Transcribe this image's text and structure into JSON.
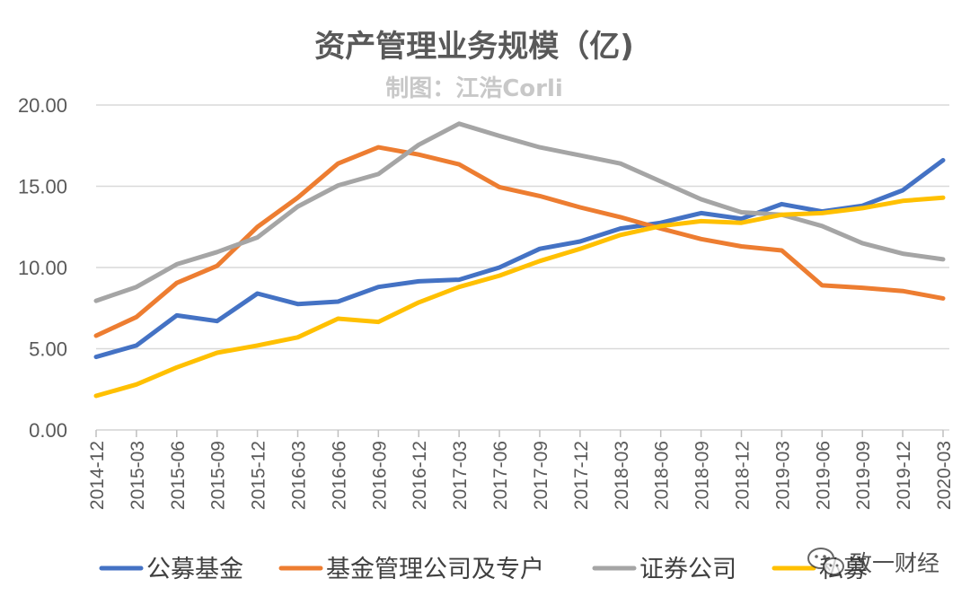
{
  "chart_data": {
    "type": "line",
    "title": "资产管理业务规模（亿)",
    "subtitle": "制图：江浩Corli",
    "xlabel": "",
    "ylabel": "",
    "ylim": [
      0,
      20
    ],
    "yticks": [
      "0.00",
      "5.00",
      "10.00",
      "15.00",
      "20.00"
    ],
    "ytick_values": [
      0,
      5,
      10,
      15,
      20
    ],
    "grid": true,
    "legend_position": "bottom",
    "categories": [
      "2014-12",
      "2015-03",
      "2015-06",
      "2015-09",
      "2015-12",
      "2016-03",
      "2016-06",
      "2016-09",
      "2016-12",
      "2017-03",
      "2017-06",
      "2017-09",
      "2017-12",
      "2018-03",
      "2018-06",
      "2018-09",
      "2018-12",
      "2019-03",
      "2019-06",
      "2019-09",
      "2019-12",
      "2020-03"
    ],
    "series": [
      {
        "name": "公募基金",
        "color": "#4472c4",
        "values": [
          4.5,
          5.2,
          7.05,
          6.7,
          8.4,
          7.75,
          7.9,
          8.8,
          9.15,
          9.25,
          10.0,
          11.15,
          11.6,
          12.4,
          12.75,
          13.35,
          13.0,
          13.9,
          13.45,
          13.8,
          14.75,
          16.6
        ]
      },
      {
        "name": "基金管理公司及专户",
        "color": "#ed7d31",
        "values": [
          5.8,
          6.95,
          9.05,
          10.1,
          12.5,
          14.3,
          16.4,
          17.4,
          16.95,
          16.35,
          14.95,
          14.4,
          13.7,
          13.1,
          12.4,
          11.75,
          11.3,
          11.05,
          8.9,
          8.75,
          8.55,
          8.1
        ]
      },
      {
        "name": "证券公司",
        "color": "#a5a5a5",
        "values": [
          7.95,
          8.8,
          10.2,
          10.95,
          11.85,
          13.75,
          15.05,
          15.75,
          17.55,
          18.85,
          18.1,
          17.4,
          16.9,
          16.4,
          15.3,
          14.2,
          13.4,
          13.25,
          12.55,
          11.5,
          10.85,
          10.5
        ]
      },
      {
        "name": "私募",
        "color": "#ffc000",
        "values": [
          2.1,
          2.8,
          3.85,
          4.75,
          5.2,
          5.7,
          6.85,
          6.65,
          7.85,
          8.8,
          9.5,
          10.4,
          11.15,
          12.0,
          12.55,
          12.85,
          12.75,
          13.25,
          13.35,
          13.65,
          14.1,
          14.3
        ]
      }
    ]
  },
  "watermark": {
    "text": "致一财经",
    "icon": "wechat-icon"
  }
}
